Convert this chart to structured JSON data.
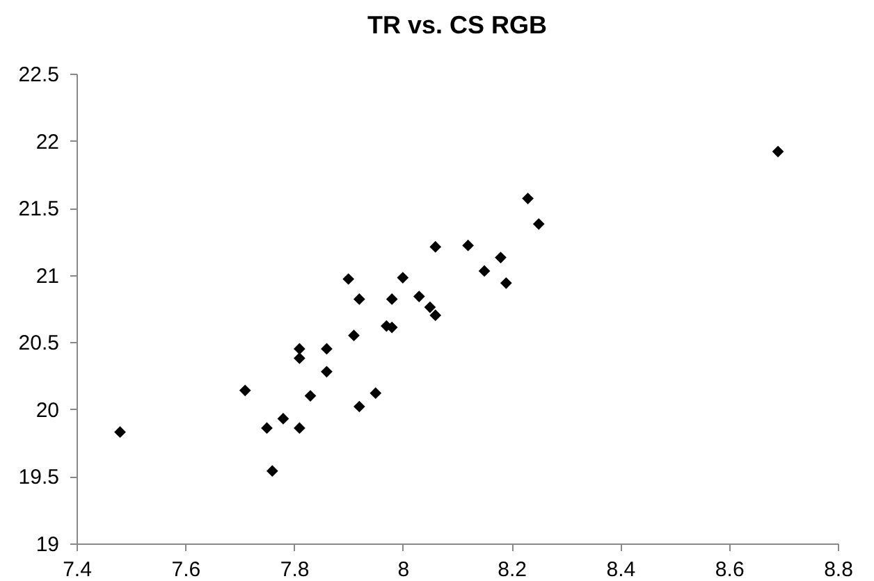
{
  "chart_data": {
    "type": "scatter",
    "title": "TR vs. CS RGB",
    "x": [
      7.48,
      7.71,
      7.75,
      7.78,
      7.76,
      7.81,
      7.81,
      7.81,
      7.83,
      7.86,
      7.86,
      7.9,
      7.91,
      7.92,
      7.92,
      7.95,
      7.97,
      7.98,
      7.98,
      8.0,
      8.03,
      8.05,
      8.06,
      8.06,
      8.12,
      8.15,
      8.18,
      8.19,
      8.23,
      8.25,
      8.69
    ],
    "series": [
      {
        "color": "#000000",
        "values": [
          19.83,
          20.14,
          19.86,
          19.93,
          19.54,
          20.45,
          20.38,
          19.86,
          20.1,
          20.45,
          20.28,
          20.97,
          20.55,
          20.82,
          20.02,
          20.12,
          20.62,
          20.61,
          20.82,
          20.98,
          20.84,
          20.76,
          20.7,
          21.21,
          21.22,
          21.03,
          21.13,
          20.94,
          21.57,
          21.38,
          21.92
        ]
      }
    ],
    "xlim": [
      7.4,
      8.8
    ],
    "xticks": [
      7.4,
      7.6,
      7.8,
      8,
      8.2,
      8.4,
      8.6,
      8.8
    ],
    "ylim": [
      19,
      22.5
    ],
    "yticks": [
      19,
      19.5,
      20,
      20.5,
      21,
      21.5,
      22,
      22.5
    ],
    "marker": "diamond",
    "grid": false,
    "legend": false
  }
}
